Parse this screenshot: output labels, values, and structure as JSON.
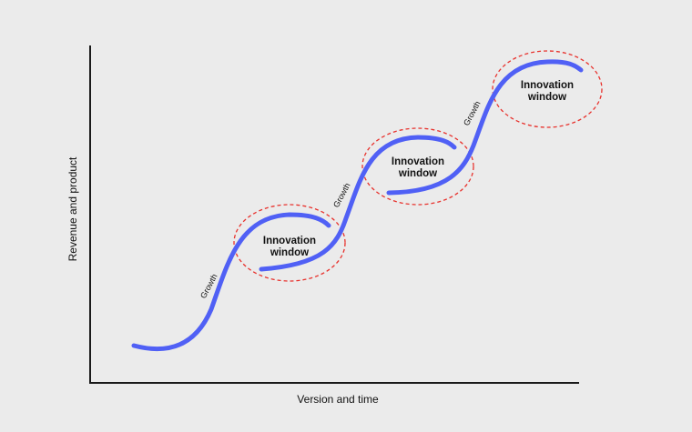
{
  "axes": {
    "y_label": "Revenue and product",
    "x_label": "Version and time"
  },
  "innovation_windows": [
    {
      "line1": "Innovation",
      "line2": "window"
    },
    {
      "line1": "Innovation",
      "line2": "window"
    },
    {
      "line1": "Innovation",
      "line2": "window"
    }
  ],
  "growth_labels": [
    "Growth",
    "Growth",
    "Growth"
  ],
  "colors": {
    "background": "#ebebeb",
    "curve": "#5060f5",
    "window_outline": "#e8322d",
    "axis": "#1a1a1a"
  }
}
